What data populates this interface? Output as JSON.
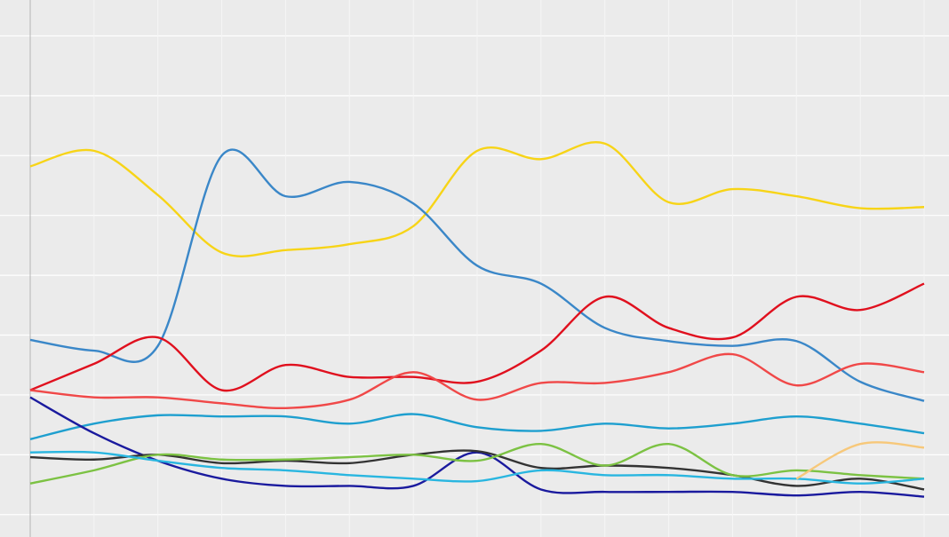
{
  "chart_data": {
    "type": "line",
    "x": [
      0,
      1,
      2,
      3,
      4,
      5,
      6,
      7,
      8,
      9,
      10,
      11,
      12,
      13,
      14
    ],
    "xlim": [
      0,
      14
    ],
    "xticks": [
      0,
      1,
      2,
      3,
      4,
      5,
      6,
      7,
      8,
      9,
      10,
      11,
      12,
      13,
      14
    ],
    "ylim": [
      -1.5,
      43
    ],
    "yticks": [
      0,
      5,
      10,
      15,
      20,
      25,
      30,
      35,
      40
    ],
    "grid": true,
    "series": [
      {
        "color": "#f7d417",
        "values": [
          29.1,
          30.4,
          26.7,
          21.9,
          22.1,
          22.6,
          24.1,
          30.4,
          29.7,
          31.0,
          26.1,
          27.2,
          26.6,
          25.6,
          25.7
        ]
      },
      {
        "color": "#3a87c8",
        "values": [
          14.6,
          13.7,
          14.1,
          30.0,
          26.6,
          27.8,
          26.0,
          20.8,
          19.3,
          15.6,
          14.5,
          14.1,
          14.5,
          11.1,
          9.5
        ]
      },
      {
        "color": "#e0101e",
        "values": [
          10.4,
          12.6,
          14.8,
          10.4,
          12.5,
          11.5,
          11.5,
          11.1,
          13.7,
          18.2,
          15.6,
          14.8,
          18.2,
          17.1,
          19.3
        ]
      },
      {
        "color": "#f04848",
        "values": [
          10.4,
          9.8,
          9.8,
          9.3,
          8.9,
          9.6,
          11.9,
          9.6,
          11.0,
          11.0,
          11.9,
          13.4,
          10.8,
          12.6,
          11.9
        ]
      },
      {
        "color": "#1e9fcf",
        "values": [
          6.3,
          7.6,
          8.3,
          8.2,
          8.2,
          7.6,
          8.4,
          7.3,
          7.0,
          7.6,
          7.2,
          7.6,
          8.2,
          7.6,
          6.8
        ]
      },
      {
        "color": "#1a1a9e",
        "values": [
          9.8,
          6.8,
          4.5,
          3.0,
          2.4,
          2.4,
          2.4,
          5.2,
          2.1,
          1.9,
          1.9,
          1.9,
          1.6,
          1.9,
          1.5
        ]
      },
      {
        "color": "#333333",
        "values": [
          4.8,
          4.6,
          5.0,
          4.3,
          4.5,
          4.3,
          5.0,
          5.3,
          3.9,
          4.1,
          3.9,
          3.3,
          2.4,
          3.0,
          2.1
        ]
      },
      {
        "color": "#7cc243",
        "values": [
          2.6,
          3.7,
          5.0,
          4.6,
          4.6,
          4.8,
          5.0,
          4.5,
          5.9,
          4.1,
          5.9,
          3.3,
          3.7,
          3.3,
          3.0
        ]
      },
      {
        "color": "#29b6e0",
        "values": [
          5.2,
          5.2,
          4.5,
          3.9,
          3.7,
          3.3,
          3.0,
          2.8,
          3.7,
          3.3,
          3.3,
          3.0,
          3.0,
          2.6,
          3.0
        ]
      },
      {
        "color": "#f7c87a",
        "values": [
          null,
          null,
          null,
          null,
          null,
          null,
          null,
          null,
          null,
          null,
          null,
          null,
          3.0,
          5.9,
          5.6
        ]
      }
    ]
  }
}
